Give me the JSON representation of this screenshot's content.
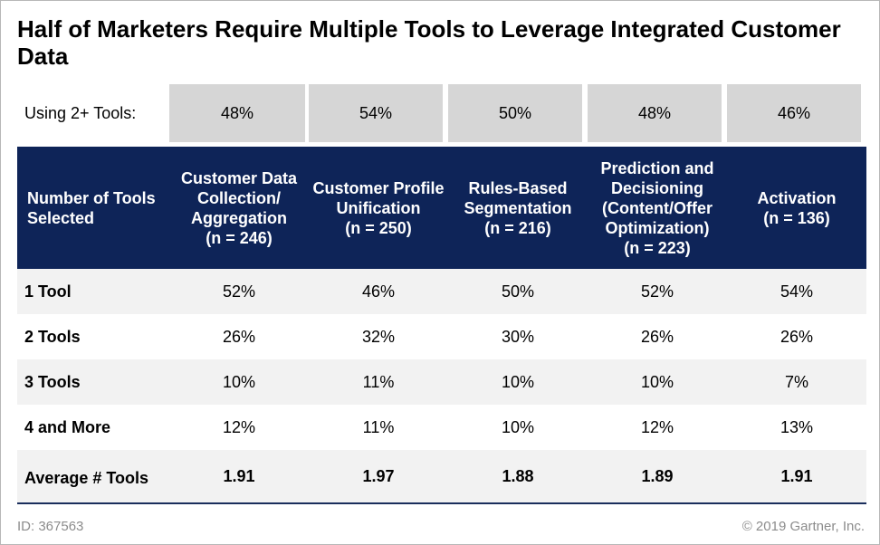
{
  "chart_data": {
    "type": "table",
    "title": "Half of Marketers Require Multiple Tools to Leverage Integrated Customer Data",
    "summary_row": {
      "label": "Using 2+ Tools:",
      "values": [
        "48%",
        "54%",
        "50%",
        "48%",
        "46%"
      ]
    },
    "header_label": "Number of Tools Selected",
    "columns": [
      {
        "name": "Customer Data Collection/ Aggregation",
        "n": "(n = 246)"
      },
      {
        "name": "Customer Profile Unification",
        "n": "(n = 250)"
      },
      {
        "name": "Rules-Based Segmentation",
        "n": "(n = 216)"
      },
      {
        "name": "Prediction and Decisioning (Content/Offer Optimization)",
        "n": "(n = 223)"
      },
      {
        "name": "Activation",
        "n": "(n = 136)"
      }
    ],
    "rows": [
      {
        "label": "1 Tool",
        "values": [
          "52%",
          "46%",
          "50%",
          "52%",
          "54%"
        ]
      },
      {
        "label": "2 Tools",
        "values": [
          "26%",
          "32%",
          "30%",
          "26%",
          "26%"
        ]
      },
      {
        "label": "3 Tools",
        "values": [
          "10%",
          "11%",
          "10%",
          "10%",
          "7%"
        ]
      },
      {
        "label": "4 and More",
        "values": [
          "12%",
          "11%",
          "10%",
          "12%",
          "13%"
        ]
      },
      {
        "label": "Average # Tools",
        "values": [
          "1.91",
          "1.97",
          "1.88",
          "1.89",
          "1.91"
        ]
      }
    ]
  },
  "footer": {
    "id": "ID: 367563",
    "copyright": "© 2019 Gartner, Inc."
  },
  "colors": {
    "header_bg": "#0e2458",
    "summary_cell_bg": "#d6d6d6",
    "row_alt_bg": "#f2f2f2"
  }
}
